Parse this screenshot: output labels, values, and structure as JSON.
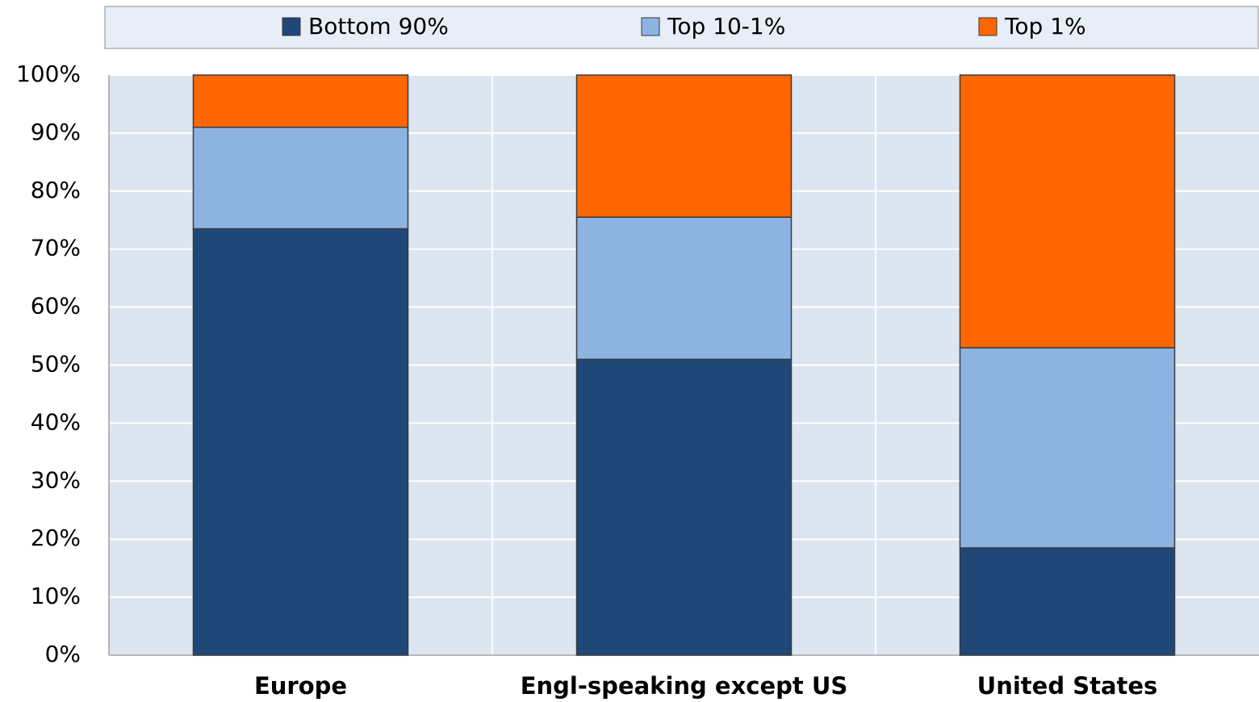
{
  "chart_data": {
    "type": "stacked_bar",
    "categories": [
      "Europe",
      "Engl-speaking except US",
      "United States"
    ],
    "series": [
      {
        "name": "Bottom 90%",
        "color": "#1f4778",
        "values": [
          73.5,
          51,
          18.5
        ]
      },
      {
        "name": "Top 10-1%",
        "color": "#8db3e2",
        "values": [
          17.5,
          24.5,
          34.5
        ]
      },
      {
        "name": "Top 1%",
        "color": "#ff6600",
        "values": [
          9,
          24.5,
          47
        ]
      }
    ],
    "ylim": [
      0,
      100
    ],
    "yticks": [
      {
        "value": 0,
        "label": "0%"
      },
      {
        "value": 10,
        "label": "10%"
      },
      {
        "value": 20,
        "label": "20%"
      },
      {
        "value": 30,
        "label": "30%"
      },
      {
        "value": 40,
        "label": "40%"
      },
      {
        "value": 50,
        "label": "50%"
      },
      {
        "value": 60,
        "label": "60%"
      },
      {
        "value": 70,
        "label": "70%"
      },
      {
        "value": 80,
        "label": "80%"
      },
      {
        "value": 90,
        "label": "90%"
      },
      {
        "value": 100,
        "label": "100%"
      }
    ],
    "grid": true,
    "legend": "top"
  }
}
